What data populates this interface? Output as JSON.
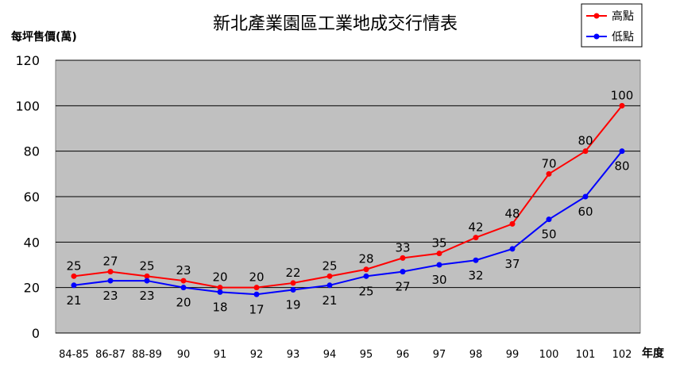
{
  "chart_data": {
    "type": "line",
    "title": "新北產業園區工業地成交行情表",
    "ylabel": "每坪售價(萬)",
    "xlabel": "年度",
    "categories": [
      "84-85",
      "86-87",
      "88-89",
      "90",
      "91",
      "92",
      "93",
      "94",
      "95",
      "96",
      "97",
      "98",
      "99",
      "100",
      "101",
      "102"
    ],
    "ylim": [
      0,
      120
    ],
    "yticks": [
      0,
      20,
      40,
      60,
      80,
      100,
      120
    ],
    "grid": true,
    "legend_position": "top-right",
    "series": [
      {
        "name": "高點",
        "color": "#ff0000",
        "values": [
          25,
          27,
          25,
          23,
          20,
          20,
          22,
          25,
          28,
          33,
          35,
          42,
          48,
          70,
          80,
          100
        ]
      },
      {
        "name": "低點",
        "color": "#0000ff",
        "values": [
          21,
          23,
          23,
          20,
          18,
          17,
          19,
          21,
          25,
          27,
          30,
          32,
          37,
          50,
          60,
          80
        ]
      }
    ],
    "plot_background": "#c0c0c0"
  }
}
